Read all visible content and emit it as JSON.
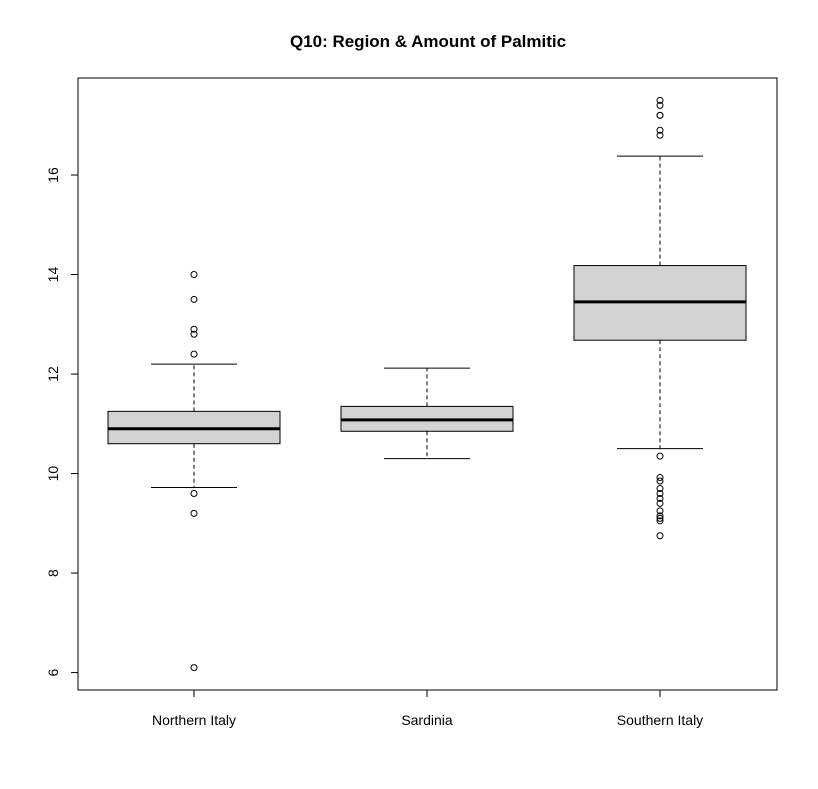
{
  "chart_data": {
    "type": "box",
    "title": "Q10: Region & Amount of Palmitic",
    "xlabel": "",
    "ylabel": "",
    "categories": [
      "Northern Italy",
      "Sardinia",
      "Southern Italy"
    ],
    "ylim": [
      5.65,
      17.95
    ],
    "yticks": [
      6,
      8,
      10,
      12,
      14,
      16
    ],
    "box_fill": "#d3d3d3",
    "grid": false,
    "boxes": [
      {
        "name": "Northern Italy",
        "whisker_low": 9.72,
        "q1": 10.6,
        "median": 10.9,
        "q3": 11.25,
        "whisker_high": 12.2,
        "outliers": [
          14.0,
          13.5,
          12.9,
          12.8,
          12.4,
          9.6,
          9.2,
          6.1
        ]
      },
      {
        "name": "Sardinia",
        "whisker_low": 10.3,
        "q1": 10.85,
        "median": 11.08,
        "q3": 11.35,
        "whisker_high": 12.12,
        "outliers": []
      },
      {
        "name": "Southern Italy",
        "whisker_low": 10.5,
        "q1": 12.68,
        "median": 13.45,
        "q3": 14.18,
        "whisker_high": 16.38,
        "outliers": [
          17.5,
          17.4,
          17.2,
          17.2,
          16.9,
          16.8,
          10.35,
          9.92,
          9.85,
          9.7,
          9.6,
          9.5,
          9.4,
          9.25,
          9.15,
          9.1,
          9.05,
          8.75
        ]
      }
    ]
  }
}
